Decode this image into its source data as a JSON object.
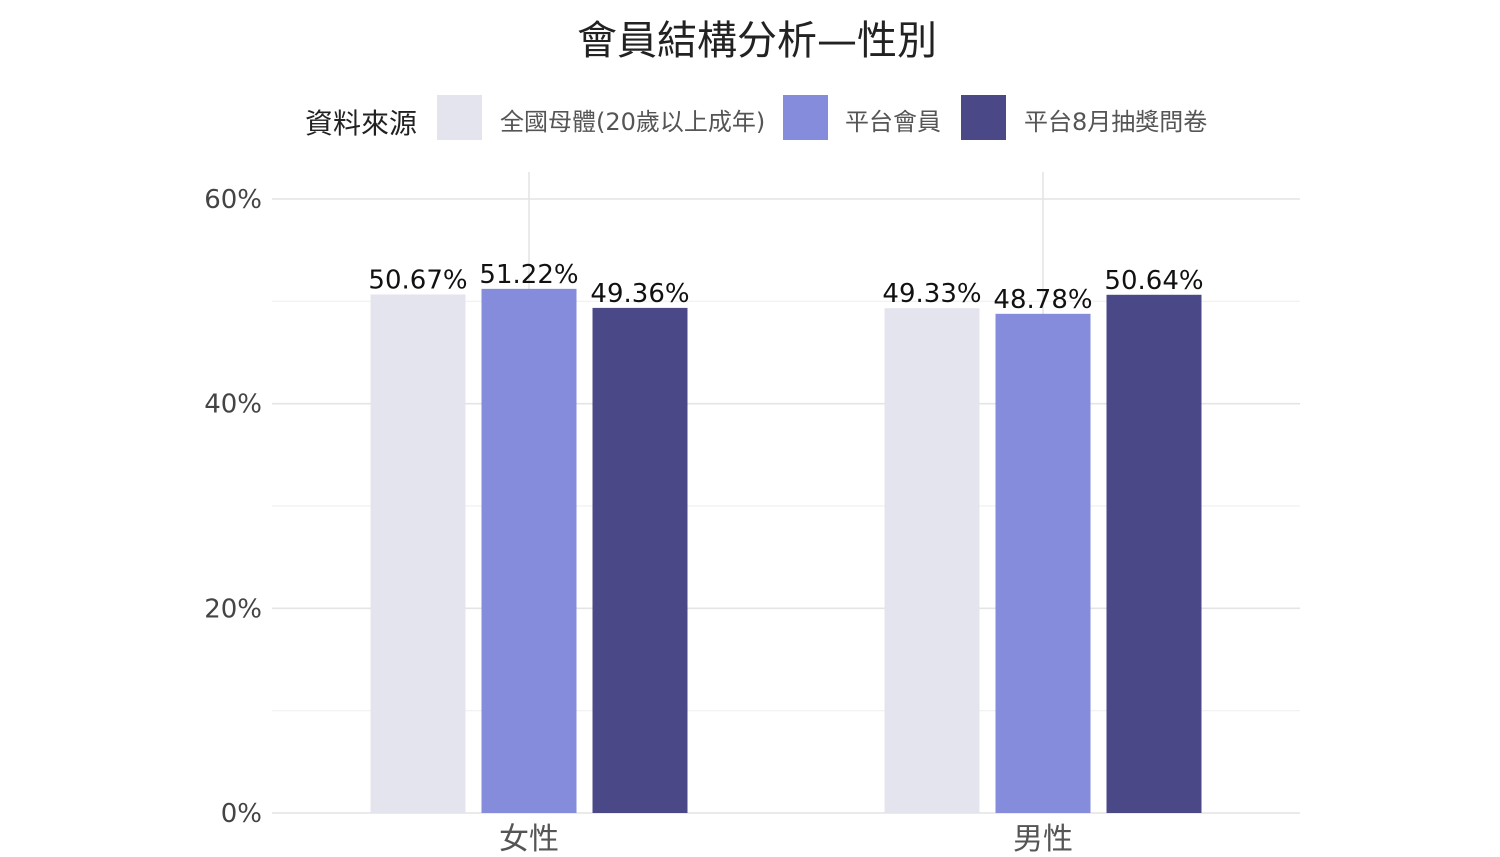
{
  "chart_data": {
    "type": "bar",
    "title": "會員結構分析—性別",
    "legend_title": "資料來源",
    "legend_position": "top",
    "categories": [
      "女性",
      "男性"
    ],
    "series": [
      {
        "name": "全國母體(20歲以上成年)",
        "color": "#e4e4ef",
        "values": [
          50.67,
          49.33
        ],
        "labels": [
          "50.67%",
          "49.33%"
        ]
      },
      {
        "name": "平台會員",
        "color": "#848cdb",
        "values": [
          51.22,
          48.78
        ],
        "labels": [
          "51.22%",
          "48.78%"
        ]
      },
      {
        "name": "平台8月抽獎問卷",
        "color": "#4b4888",
        "values": [
          49.36,
          50.64
        ],
        "labels": [
          "49.36%",
          "50.64%"
        ]
      }
    ],
    "ylim": [
      0,
      60
    ],
    "y_ticks": [
      0,
      20,
      40,
      60
    ],
    "y_tick_labels": [
      "0%",
      "20%",
      "40%",
      "60%"
    ],
    "grid": true
  }
}
